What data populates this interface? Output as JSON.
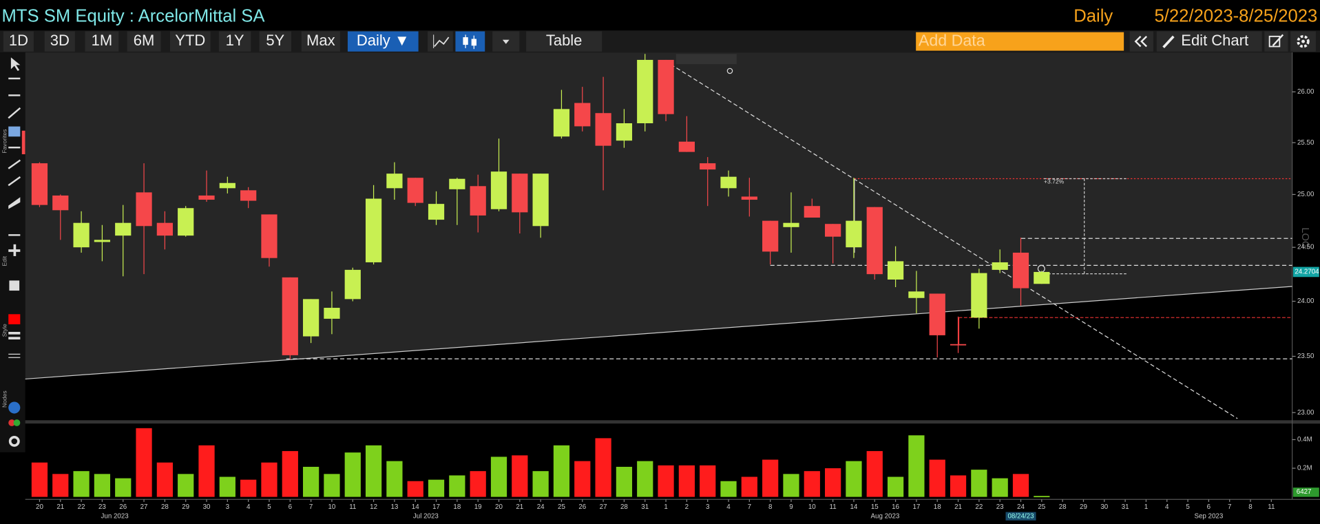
{
  "header": {
    "title": "MTS SM Equity : ArcelorMittal SA",
    "frequency": "Daily",
    "date_range": "5/22/2023-8/25/2023"
  },
  "toolbar": {
    "periods": [
      "1D",
      "3D",
      "1M",
      "6M",
      "YTD",
      "1Y",
      "5Y",
      "Max"
    ],
    "frequency_button": "Daily ▼",
    "table_button": "Table",
    "add_data_placeholder": "Add Data",
    "edit_chart": "Edit Chart"
  },
  "side_toolbar": {
    "sections": [
      "Favorites",
      "Edit",
      "Style",
      "Nodes"
    ]
  },
  "chart_data": {
    "type": "candlestick",
    "categories": [
      "20",
      "21",
      "22",
      "23",
      "26",
      "27",
      "28",
      "29",
      "30",
      "3",
      "4",
      "5",
      "6",
      "7",
      "10",
      "11",
      "12",
      "13",
      "14",
      "17",
      "18",
      "19",
      "20",
      "21",
      "24",
      "25",
      "26",
      "27",
      "28",
      "31",
      "1",
      "2",
      "3",
      "4",
      "7",
      "8",
      "9",
      "10",
      "11",
      "14",
      "15",
      "16",
      "17",
      "18",
      "21",
      "22",
      "23",
      "24",
      "25",
      "28",
      "29",
      "30",
      "31",
      "1",
      "4",
      "5",
      "6",
      "7",
      "8",
      "11"
    ],
    "group_labels": [
      "Jun 2023",
      "Jul 2023",
      "Aug 2023",
      "Sep 2023"
    ],
    "open": [
      25.3,
      24.99,
      24.5,
      24.55,
      24.61,
      25.02,
      24.73,
      24.61,
      24.99,
      25.06,
      25.04,
      24.81,
      24.22,
      23.68,
      23.84,
      24.02,
      24.36,
      25.06,
      25.16,
      24.76,
      25.05,
      25.08,
      24.86,
      25.2,
      24.7,
      25.56,
      25.89,
      25.79,
      25.52,
      25.69,
      26.32,
      25.51,
      25.3,
      25.06,
      24.98,
      24.75,
      24.69,
      24.89,
      24.72,
      24.5,
      24.88,
      24.2,
      24.03,
      24.07,
      23.61,
      23.85,
      24.29,
      24.45,
      24.16,
      null,
      null,
      null,
      null,
      null,
      null,
      null,
      null,
      null,
      null,
      null
    ],
    "high": [
      25.31,
      25.0,
      24.84,
      24.71,
      24.9,
      25.3,
      24.84,
      24.89,
      25.23,
      25.17,
      25.07,
      24.81,
      24.22,
      24.02,
      24.09,
      24.31,
      25.09,
      25.31,
      25.16,
      25.03,
      25.16,
      25.19,
      25.54,
      25.2,
      25.2,
      26.02,
      26.05,
      26.15,
      25.83,
      26.38,
      26.32,
      25.76,
      25.36,
      25.23,
      25.16,
      24.75,
      25.02,
      24.96,
      24.72,
      25.16,
      24.88,
      24.51,
      24.28,
      24.07,
      23.86,
      24.3,
      24.48,
      24.59,
      24.28,
      null,
      null,
      null,
      null,
      null,
      null,
      null,
      null,
      null,
      null,
      null
    ],
    "low": [
      24.88,
      24.57,
      24.45,
      24.37,
      24.23,
      24.25,
      24.48,
      24.6,
      24.93,
      25.01,
      24.87,
      24.32,
      23.47,
      23.62,
      23.7,
      24.0,
      24.34,
      24.95,
      24.89,
      24.71,
      24.71,
      24.64,
      24.84,
      24.63,
      24.59,
      25.54,
      25.61,
      25.04,
      25.45,
      25.61,
      25.71,
      25.41,
      24.89,
      24.98,
      24.79,
      24.34,
      24.45,
      24.78,
      24.35,
      24.4,
      24.2,
      24.13,
      23.89,
      23.49,
      23.53,
      23.75,
      24.26,
      23.96,
      24.16,
      null,
      null,
      null,
      null,
      null,
      null,
      null,
      null,
      null,
      null,
      null
    ],
    "close": [
      24.9,
      24.85,
      24.73,
      24.57,
      24.73,
      24.7,
      24.61,
      24.87,
      24.95,
      25.11,
      24.94,
      24.4,
      23.51,
      24.02,
      23.94,
      24.29,
      24.96,
      25.2,
      24.92,
      24.91,
      25.15,
      24.8,
      25.22,
      24.83,
      25.2,
      25.83,
      25.66,
      25.47,
      25.69,
      26.32,
      25.78,
      25.41,
      25.24,
      25.17,
      24.95,
      24.46,
      24.73,
      24.78,
      24.6,
      24.75,
      24.25,
      24.37,
      24.09,
      23.69,
      23.6,
      24.26,
      24.36,
      24.12,
      24.2704,
      null,
      null,
      null,
      null,
      null,
      null,
      null,
      null,
      null,
      null,
      null
    ],
    "ylim": [
      22.94,
      26.37
    ],
    "log_scale": true,
    "scale_label": "LOG",
    "yticks": [
      {
        "value": 23,
        "label": "23.00"
      },
      {
        "value": 23.5,
        "label": "23.50"
      },
      {
        "value": 24,
        "label": "24.00"
      },
      {
        "value": 24.5,
        "label": "24.50"
      },
      {
        "value": 25,
        "label": "25.00"
      },
      {
        "value": 25.5,
        "label": "25.50"
      },
      {
        "value": 26,
        "label": "26.00"
      }
    ],
    "up_color": "#c8f052",
    "down_color": "#f5474a",
    "annotation": "+3.72%",
    "cursor_date": "08/24/23",
    "volume": {
      "values": [
        240000,
        160000,
        180000,
        160000,
        130000,
        480000,
        240000,
        160000,
        360000,
        140000,
        120000,
        240000,
        320000,
        210000,
        160000,
        310000,
        360000,
        250000,
        110000,
        120000,
        150000,
        180000,
        280000,
        290000,
        180000,
        360000,
        250000,
        410000,
        210000,
        250000,
        220000,
        220000,
        220000,
        110000,
        140000,
        260000,
        160000,
        180000,
        200000,
        250000,
        320000,
        140000,
        430000,
        260000,
        150000,
        190000,
        130000,
        160000,
        6427,
        null,
        null,
        null,
        null,
        null,
        null,
        null,
        null,
        null,
        null,
        null
      ],
      "ylim": [
        0,
        500000
      ],
      "yticks": [
        {
          "value": 200000,
          "label": "0.2M"
        },
        {
          "value": 400000,
          "label": "0.4M"
        }
      ],
      "up_color": "#7ed11c",
      "down_color": "#ff1c1c"
    }
  }
}
